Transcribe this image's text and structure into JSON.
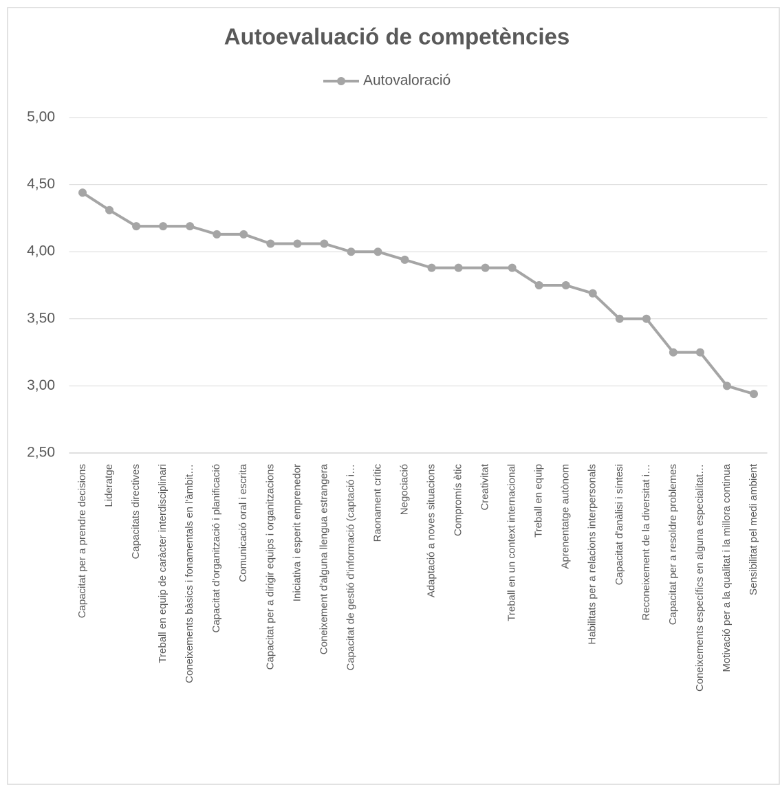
{
  "chart_data": {
    "type": "line",
    "title": "Autoevaluació de competències",
    "categories": [
      "Capacitat per a prendre decisions",
      "Lideratge",
      "Capacitats directives",
      "Treball en equip de caràcter interdisciplinari",
      "Coneixements bàsics i fonamentals en l'àmbit…",
      "Capacitat d'organització i planificació",
      "Comunicació oral i escrita",
      "Capacitat per a dirigir equips i organitzacions",
      "Iniciativa i esperit emprenedor",
      "Coneixement d'alguna llengua estrangera",
      "Capacitat de gestió d'informació (captació i…",
      "Raonament crític",
      "Negociació",
      "Adaptació a noves situacions",
      "Compromís ètic",
      "Creativitat",
      "Treball en un context internacional",
      "Treball en equip",
      "Aprenentatge autònom",
      "Habilitats per a relacions interpersonals",
      "Capacitat d'anàlisi i síntesi",
      "Reconeixement de la diversitat i…",
      "Capacitat per a resoldre problemes",
      "Coneixements específics en alguna especialitat…",
      "Motivació per a la qualitat i la millora continua",
      "Sensibilitat pel medi ambient"
    ],
    "series": [
      {
        "name": "Autovaloració",
        "color": "#a5a5a5",
        "values": [
          4.44,
          4.31,
          4.19,
          4.19,
          4.19,
          4.13,
          4.13,
          4.06,
          4.06,
          4.06,
          4.0,
          4.0,
          3.94,
          3.88,
          3.88,
          3.88,
          3.88,
          3.75,
          3.75,
          3.69,
          3.5,
          3.5,
          3.25,
          3.25,
          3.0,
          2.94
        ]
      }
    ],
    "ylim": [
      2.5,
      5.0
    ],
    "yticks": [
      {
        "value": 2.5,
        "label": "2,50"
      },
      {
        "value": 3.0,
        "label": "3,00"
      },
      {
        "value": 3.5,
        "label": "3,50"
      },
      {
        "value": 4.0,
        "label": "4,00"
      },
      {
        "value": 4.5,
        "label": "4,50"
      },
      {
        "value": 5.0,
        "label": "5,00"
      }
    ],
    "grid": true,
    "legend": "top"
  }
}
